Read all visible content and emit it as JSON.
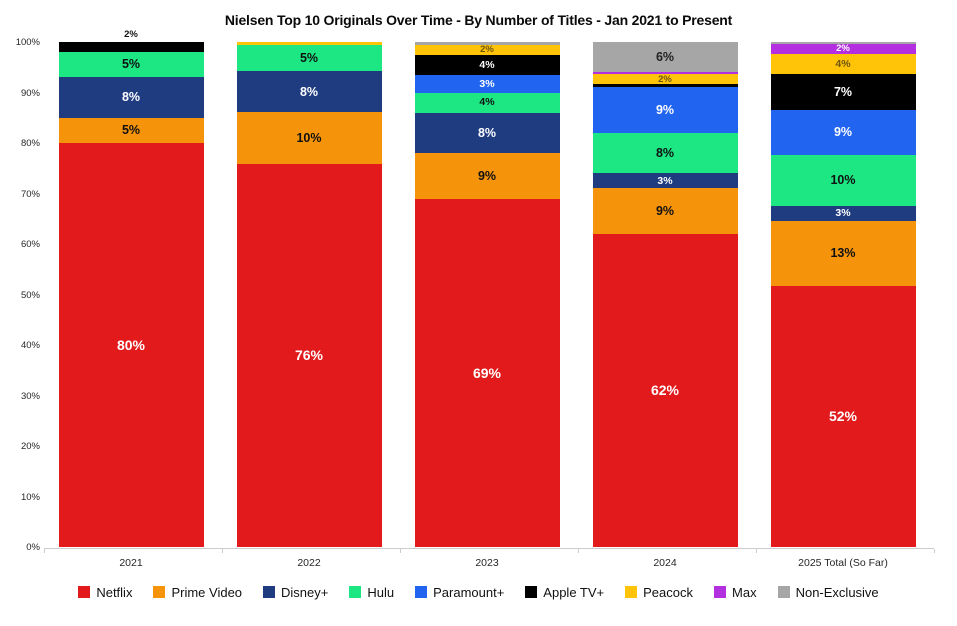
{
  "chart_data": {
    "type": "bar",
    "variant": "stacked-100-percent",
    "title": "Nielsen Top 10 Originals Over Time - By Number of Titles - Jan 2021 to Present",
    "categories": [
      "2021",
      "2022",
      "2023",
      "2024",
      "2025 Total (So Far)"
    ],
    "ylim": [
      0,
      100
    ],
    "y_axis_ticks": [
      "0%",
      "10%",
      "20%",
      "30%",
      "40%",
      "50%",
      "60%",
      "70%",
      "80%",
      "90%",
      "100%"
    ],
    "grid": "off",
    "legend_position": "bottom",
    "series": [
      {
        "name": "Netflix",
        "color": "#e21a1c",
        "label_text_color": "#ffffff",
        "values": [
          80,
          75.9,
          69,
          62,
          51.7
        ],
        "value_labels": [
          "80%",
          "76%",
          "69%",
          "62%",
          "52%"
        ]
      },
      {
        "name": "Prime Video",
        "color": "#f5930b",
        "label_text_color": "#111111",
        "values": [
          5,
          10.2,
          9,
          9,
          12.9
        ],
        "value_labels": [
          "5%",
          "10%",
          "9%",
          "9%",
          "13%"
        ]
      },
      {
        "name": "Disney+",
        "color": "#1f3c80",
        "label_text_color": "#ffffff",
        "values": [
          8,
          8.1,
          8,
          3,
          3
        ],
        "value_labels": [
          "8%",
          "8%",
          "8%",
          "3%",
          "3%"
        ]
      },
      {
        "name": "Hulu",
        "color": "#1ce783",
        "label_text_color": "#111111",
        "values": [
          5,
          5.3,
          4,
          8,
          10
        ],
        "value_labels": [
          "5%",
          "5%",
          "4%",
          "8%",
          "10%"
        ]
      },
      {
        "name": "Paramount+",
        "color": "#2164f0",
        "label_text_color": "#ffffff",
        "values": [
          0,
          0,
          3.4,
          9,
          9
        ],
        "value_labels": [
          null,
          null,
          "3%",
          "9%",
          "9%"
        ]
      },
      {
        "name": "Apple TV+",
        "color": "#000000",
        "label_text_color": "#ffffff",
        "values": [
          2,
          0,
          4,
          0.6,
          7
        ],
        "value_labels": [
          "2%",
          null,
          "4%",
          null,
          "7%"
        ]
      },
      {
        "name": "Peacock",
        "color": "#ffc307",
        "label_text_color": "#6d5510",
        "values": [
          0,
          0.5,
          2,
          2,
          4
        ],
        "value_labels": [
          null,
          null,
          "2%",
          "2%",
          "4%"
        ]
      },
      {
        "name": "Max",
        "color": "#b32fe0",
        "label_text_color": "#ffffff",
        "values": [
          0,
          0,
          0,
          0.4,
          2
        ],
        "value_labels": [
          null,
          null,
          null,
          null,
          "2%"
        ]
      },
      {
        "name": "Non-Exclusive",
        "color": "#a6a6a6",
        "label_text_color": "#222222",
        "values": [
          0,
          0,
          0.6,
          6,
          0.4
        ],
        "value_labels": [
          null,
          null,
          null,
          "6%",
          null
        ]
      }
    ],
    "outside_labels": [
      {
        "series_index": 5,
        "category_index": 0,
        "text_color": "#111111"
      }
    ]
  }
}
